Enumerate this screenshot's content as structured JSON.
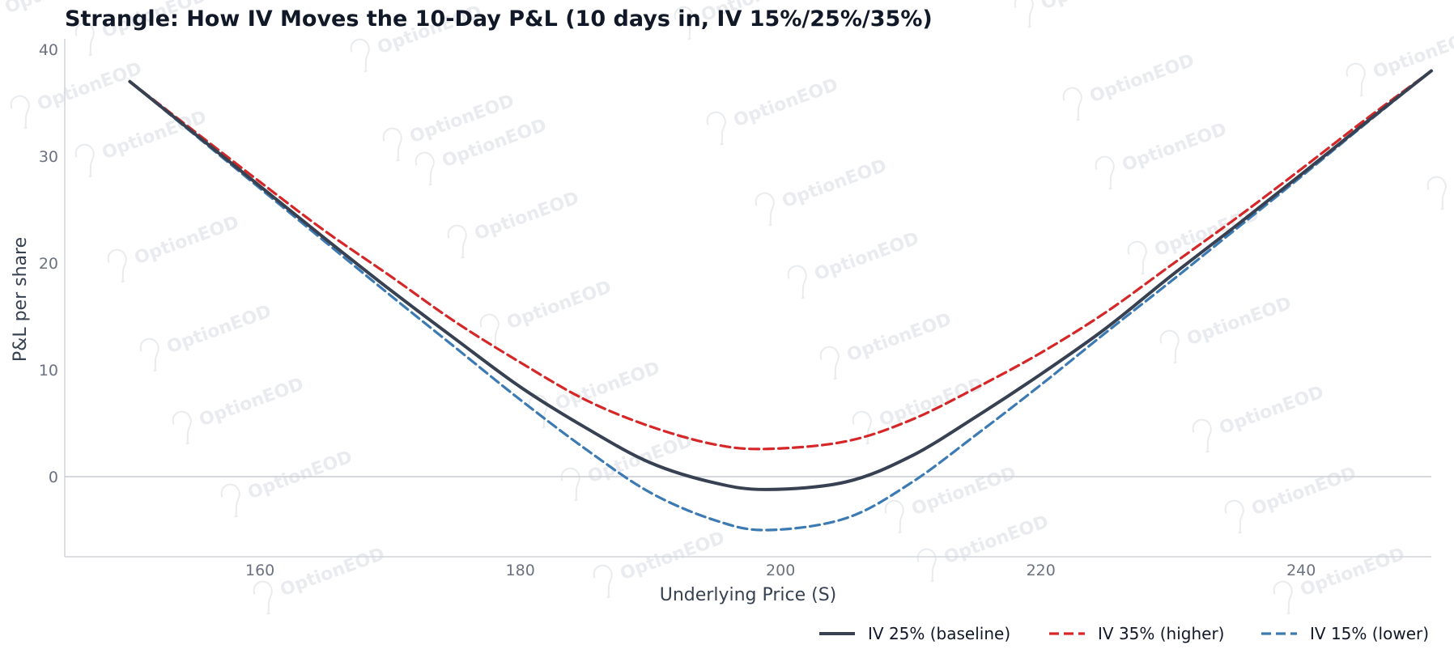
{
  "chart_data": {
    "type": "line",
    "title": "Strangle: How IV Moves the 10-Day P&L (10 days in, IV 15%/25%/35%)",
    "xlabel": "Underlying Price (S)",
    "ylabel": "P&L per share",
    "xlim": [
      145,
      250
    ],
    "ylim": [
      -7.5,
      41
    ],
    "xticks": [
      160,
      180,
      200,
      220,
      240
    ],
    "yticks": [
      0,
      10,
      20,
      30,
      40
    ],
    "zero_line": true,
    "grid": false,
    "legend_position": "bottom-right",
    "x": [
      150,
      155,
      160,
      165,
      170,
      175,
      180,
      185,
      190,
      195,
      199,
      205,
      210,
      215,
      220,
      225,
      230,
      235,
      240,
      245,
      250
    ],
    "series": [
      {
        "name": "IV 25% (baseline)",
        "color": "#374151",
        "style": "solid",
        "values": [
          37.0,
          32.1,
          27.2,
          22.3,
          17.5,
          12.9,
          8.4,
          4.6,
          1.3,
          -0.6,
          -1.2,
          -0.5,
          1.9,
          5.6,
          9.6,
          13.9,
          18.8,
          23.5,
          28.3,
          33.2,
          38.0
        ]
      },
      {
        "name": "IV 35% (higher)",
        "color": "#d62728",
        "style": "dashed",
        "values": [
          37.0,
          32.3,
          27.6,
          23.0,
          18.8,
          14.5,
          10.7,
          7.2,
          4.7,
          3.0,
          2.6,
          3.3,
          5.3,
          8.3,
          11.6,
          15.4,
          19.8,
          24.2,
          28.8,
          33.5,
          38.0
        ]
      },
      {
        "name": "IV 15% (lower)",
        "color": "#3b7ab2",
        "style": "dashed",
        "values": [
          37.0,
          32.0,
          27.0,
          22.0,
          17.0,
          12.1,
          7.2,
          2.6,
          -1.5,
          -4.1,
          -5.0,
          -3.9,
          -0.6,
          3.9,
          8.6,
          13.5,
          18.3,
          23.2,
          28.1,
          33.1,
          38.0
        ]
      }
    ],
    "watermark": "OptionEOD"
  }
}
